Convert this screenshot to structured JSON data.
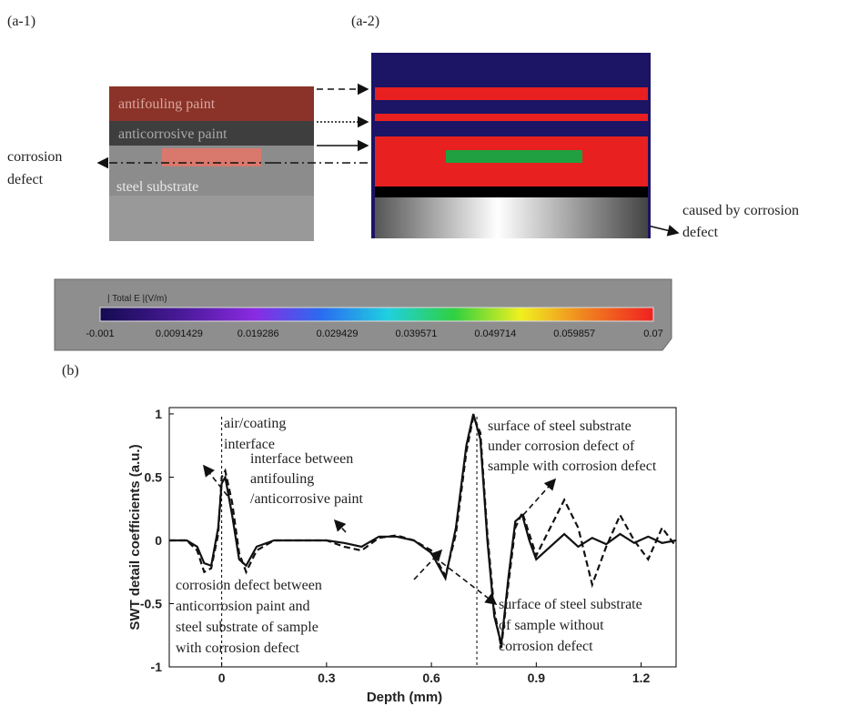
{
  "panels": {
    "a1": {
      "label": "(a-1)",
      "layers": [
        "antifouling paint",
        "anticorrosive paint",
        "steel substrate"
      ],
      "defect_label": [
        "corrosion",
        "defect"
      ]
    },
    "a2": {
      "label": "(a-2)",
      "note": [
        "caused by corrosion",
        "defect"
      ]
    },
    "b": {
      "label": "(b)"
    }
  },
  "colorbar": {
    "title": "| Total E |(V/m)",
    "lim": [
      -0.001,
      0.07
    ],
    "ticks": [
      -0.001,
      0.0091429,
      0.019286,
      0.029429,
      0.039571,
      0.049714,
      0.059857,
      0.07
    ]
  },
  "chart_data": {
    "type": "line",
    "x_label": "Depth (mm)",
    "y_label": "SWT detail coefficients (a.u.)",
    "x": [
      -0.15,
      -0.1,
      -0.07,
      -0.05,
      -0.03,
      -0.01,
      0,
      0.01,
      0.03,
      0.05,
      0.07,
      0.1,
      0.15,
      0.2,
      0.25,
      0.3,
      0.35,
      0.4,
      0.45,
      0.5,
      0.55,
      0.6,
      0.64,
      0.67,
      0.7,
      0.72,
      0.74,
      0.76,
      0.78,
      0.8,
      0.82,
      0.84,
      0.86,
      0.88,
      0.9,
      0.94,
      0.98,
      1.02,
      1.06,
      1.1,
      1.14,
      1.18,
      1.22,
      1.26,
      1.3
    ],
    "series": [
      {
        "color": "#111111",
        "dash": "solid",
        "values": [
          0,
          0,
          -0.05,
          -0.18,
          -0.2,
          0.1,
          0.45,
          0.5,
          0.2,
          -0.15,
          -0.2,
          -0.05,
          0,
          0,
          0,
          0,
          -0.02,
          -0.05,
          0.03,
          0.03,
          0,
          -0.1,
          -0.3,
          0.1,
          0.75,
          1.0,
          0.8,
          0,
          -0.6,
          -0.82,
          -0.3,
          0.15,
          0.2,
          0,
          -0.15,
          -0.05,
          0.05,
          -0.05,
          0.02,
          -0.03,
          0.05,
          -0.02,
          0.03,
          -0.02,
          0
        ]
      },
      {
        "color": "#111111",
        "dash": "dashed",
        "values": [
          0,
          0,
          -0.08,
          -0.25,
          -0.22,
          0.05,
          0.5,
          0.55,
          0.3,
          -0.1,
          -0.25,
          -0.08,
          0,
          0,
          0,
          0,
          -0.05,
          -0.08,
          0.02,
          0.04,
          0,
          -0.08,
          -0.28,
          0.05,
          0.7,
          0.98,
          0.85,
          0.05,
          -0.55,
          -0.85,
          -0.35,
          0.1,
          0.22,
          0.05,
          -0.12,
          0.1,
          0.32,
          0.1,
          -0.35,
          -0.05,
          0.2,
          0,
          -0.15,
          0.1,
          -0.05
        ]
      }
    ],
    "xlim": [
      -0.15,
      1.3
    ],
    "xticks": [
      0,
      0.3,
      0.6,
      0.9,
      1.2
    ],
    "ylim": [
      -1,
      1.05
    ],
    "yticks": [
      -1,
      -0.5,
      0,
      0.5,
      1
    ],
    "vlines": [
      0,
      0.73
    ],
    "annotations": [
      {
        "lines": [
          "air/coating",
          "interface"
        ]
      },
      {
        "lines": [
          "interface between",
          "antifouling",
          "/anticorrosive paint"
        ]
      },
      {
        "lines": [
          "surface of steel substrate",
          "under corrosion defect of",
          "sample with corrosion defect"
        ]
      },
      {
        "lines": [
          "corrosion defect between",
          "anticorrosion paint and",
          "steel substrate of sample",
          "with corrosion defect"
        ]
      },
      {
        "lines": [
          "surface of steel substrate",
          "of sample without",
          "corrosion defect"
        ]
      }
    ]
  }
}
